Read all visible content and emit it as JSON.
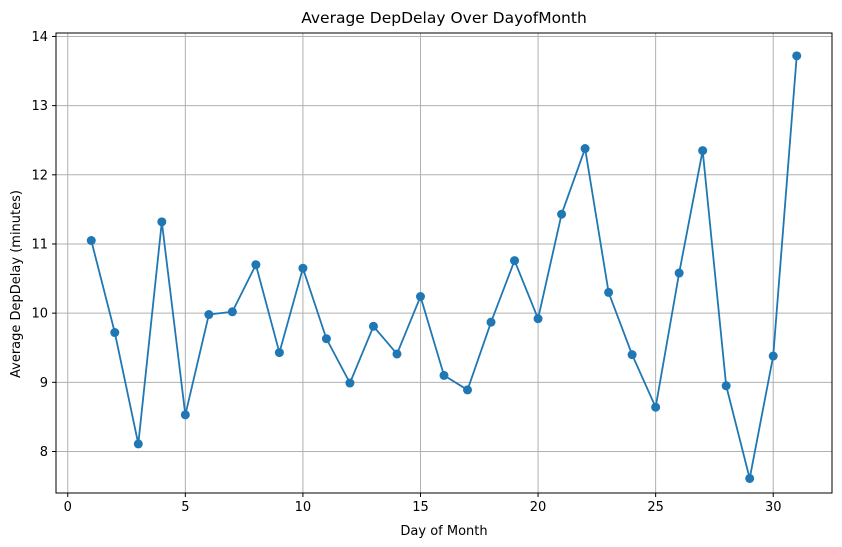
{
  "chart_data": {
    "type": "line",
    "title": "Average DepDelay Over DayofMonth",
    "xlabel": "Day of Month",
    "ylabel": "Average DepDelay (minutes)",
    "xlim": [
      -0.5,
      32.5
    ],
    "ylim": [
      7.4,
      14.05
    ],
    "xticks": [
      0,
      5,
      10,
      15,
      20,
      25,
      30
    ],
    "yticks": [
      8,
      9,
      10,
      11,
      12,
      13,
      14
    ],
    "grid": true,
    "marker": "circle",
    "color": "#1f77b4",
    "series": [
      {
        "x": [
          1,
          2,
          3,
          4,
          5,
          6,
          7,
          8,
          9,
          10,
          11,
          12,
          13,
          14,
          15,
          16,
          17,
          18,
          19,
          20,
          21,
          22,
          23,
          24,
          25,
          26,
          27,
          28,
          29,
          30,
          31
        ],
        "values": [
          11.05,
          9.72,
          8.11,
          11.32,
          8.53,
          9.98,
          10.02,
          10.7,
          9.43,
          10.65,
          9.63,
          8.99,
          9.81,
          9.41,
          10.24,
          9.1,
          8.89,
          9.87,
          10.76,
          9.92,
          11.43,
          12.38,
          10.3,
          9.4,
          8.64,
          10.58,
          12.35,
          8.95,
          7.61,
          9.38,
          13.72
        ]
      }
    ]
  }
}
